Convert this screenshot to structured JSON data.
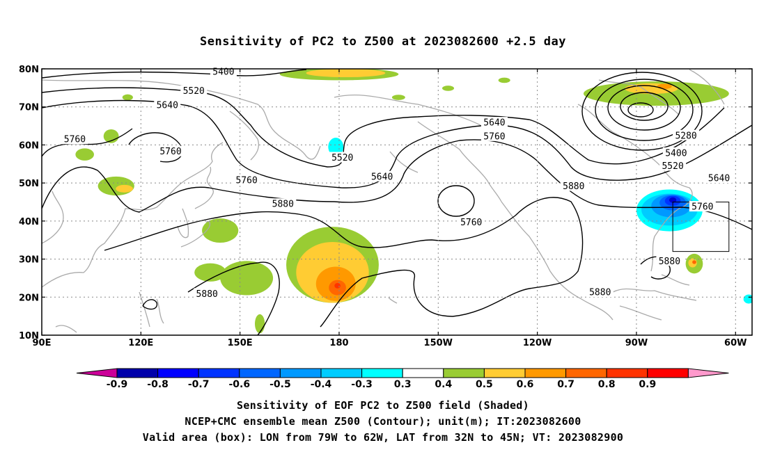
{
  "title": "Sensitivity of PC2 to Z500 at 2023082600 +2.5 day",
  "captions": [
    "Sensitivity of EOF PC2 to Z500 field (Shaded)",
    "NCEP+CMC ensemble mean Z500 (Contour); unit(m); IT:2023082600",
    "Valid area (box): LON from 79W to 62W, LAT from 32N to 45N; VT: 2023082900"
  ],
  "map": {
    "lon_range": [
      90,
      305
    ],
    "lat_range": [
      10,
      80
    ],
    "lat_ticks": [
      {
        "value": 80,
        "label": "80N"
      },
      {
        "value": 70,
        "label": "70N"
      },
      {
        "value": 60,
        "label": "60N"
      },
      {
        "value": 50,
        "label": "50N"
      },
      {
        "value": 40,
        "label": "40N"
      },
      {
        "value": 30,
        "label": "30N"
      },
      {
        "value": 20,
        "label": "20N"
      },
      {
        "value": 10,
        "label": "10N"
      }
    ],
    "lon_ticks": [
      {
        "value": 90,
        "label": "90E"
      },
      {
        "value": 120,
        "label": "120E"
      },
      {
        "value": 150,
        "label": "150E"
      },
      {
        "value": 180,
        "label": "180"
      },
      {
        "value": 210,
        "label": "150W"
      },
      {
        "value": 240,
        "label": "120W"
      },
      {
        "value": 270,
        "label": "90W"
      },
      {
        "value": 300,
        "label": "60W"
      }
    ],
    "valid_box": {
      "lon": [
        281,
        298
      ],
      "lat": [
        32,
        45
      ]
    },
    "contour_labels": [
      {
        "text": "5400",
        "lon": 145,
        "lat": 79.3
      },
      {
        "text": "5520",
        "lon": 136,
        "lat": 74.2
      },
      {
        "text": "5640",
        "lon": 128,
        "lat": 70.5
      },
      {
        "text": "5760",
        "lon": 100,
        "lat": 61.5
      },
      {
        "text": "5760",
        "lon": 129,
        "lat": 58.3
      },
      {
        "text": "5520",
        "lon": 181,
        "lat": 56.7
      },
      {
        "text": "5640",
        "lon": 193,
        "lat": 51.7
      },
      {
        "text": "5760",
        "lon": 152,
        "lat": 50.8
      },
      {
        "text": "5880",
        "lon": 163,
        "lat": 44.5
      },
      {
        "text": "5640",
        "lon": 227,
        "lat": 65.9
      },
      {
        "text": "5760",
        "lon": 227,
        "lat": 62.3
      },
      {
        "text": "5760",
        "lon": 220,
        "lat": 39.7
      },
      {
        "text": "5880",
        "lon": 251,
        "lat": 49.2
      },
      {
        "text": "5280",
        "lon": 285,
        "lat": 62.5
      },
      {
        "text": "5400",
        "lon": 282,
        "lat": 57.9
      },
      {
        "text": "5520",
        "lon": 281,
        "lat": 54.5
      },
      {
        "text": "5640",
        "lon": 295,
        "lat": 51.3
      },
      {
        "text": "5760",
        "lon": 290,
        "lat": 43.8
      },
      {
        "text": "5880",
        "lon": 280,
        "lat": 29.5
      },
      {
        "text": "5880",
        "lon": 259,
        "lat": 21.3
      },
      {
        "text": "5880",
        "lon": 140,
        "lat": 20.9
      }
    ],
    "shading": [
      {
        "level": "0.3-0.4",
        "color": "#99cc33",
        "lon": 103,
        "lat": 57.5,
        "rlon": 2.8,
        "rlat": 1.6
      },
      {
        "level": "0.3-0.4",
        "color": "#99cc33",
        "lon": 111,
        "lat": 62.3,
        "rlon": 2.3,
        "rlat": 1.8
      },
      {
        "level": "0.3-0.4",
        "color": "#99cc33",
        "lon": 116,
        "lat": 72.5,
        "rlon": 1.6,
        "rlat": 0.8
      },
      {
        "level": "0.3-0.4",
        "color": "#99cc33",
        "lon": 112.5,
        "lat": 49.2,
        "rlon": 5.5,
        "rlat": 2.5
      },
      {
        "level": "0.3-0.4",
        "color": "#99cc33",
        "lon": 144,
        "lat": 37.5,
        "rlon": 5.5,
        "rlat": 3.2
      },
      {
        "level": "0.3-0.4",
        "color": "#99cc33",
        "lon": 152,
        "lat": 25,
        "rlon": 8,
        "rlat": 4.5
      },
      {
        "level": "0.3-0.4",
        "color": "#99cc33",
        "lon": 141,
        "lat": 26.5,
        "rlon": 4.8,
        "rlat": 2.4
      },
      {
        "level": "0.3-0.4",
        "color": "#99cc33",
        "lon": 156,
        "lat": 13,
        "rlon": 1.5,
        "rlat": 2.5
      },
      {
        "level": "0.3-0.4",
        "color": "#99cc33",
        "lon": 178,
        "lat": 28.5,
        "rlon": 14,
        "rlat": 10
      },
      {
        "level": "0.3-0.4",
        "color": "#99cc33",
        "lon": 180,
        "lat": 78.6,
        "rlon": 18,
        "rlat": 1.6
      },
      {
        "level": "0.3-0.4",
        "color": "#99cc33",
        "lon": 276,
        "lat": 73.5,
        "rlon": 22,
        "rlat": 3.2
      },
      {
        "level": "0.3-0.4",
        "color": "#99cc33",
        "lon": 198,
        "lat": 72.5,
        "rlon": 2,
        "rlat": 0.7
      },
      {
        "level": "0.3-0.4",
        "color": "#99cc33",
        "lon": 213,
        "lat": 74.9,
        "rlon": 1.8,
        "rlat": 0.7
      },
      {
        "level": "0.3-0.4",
        "color": "#99cc33",
        "lon": 230,
        "lat": 77,
        "rlon": 1.8,
        "rlat": 0.7
      },
      {
        "level": "0.3-0.4",
        "color": "#99cc33",
        "lon": 287.5,
        "lat": 28.8,
        "rlon": 2.6,
        "rlat": 2.6
      },
      {
        "level": "0.4-0.5",
        "color": "#ffcc33",
        "lon": 178,
        "lat": 26.5,
        "rlon": 11,
        "rlat": 8
      },
      {
        "level": "0.4-0.5",
        "color": "#ffcc33",
        "lon": 182,
        "lat": 78.9,
        "rlon": 12,
        "rlat": 1.1
      },
      {
        "level": "0.4-0.5",
        "color": "#ffcc33",
        "lon": 274.5,
        "lat": 74.8,
        "rlon": 8,
        "rlat": 1.4
      },
      {
        "level": "0.4-0.5",
        "color": "#ffcc33",
        "lon": 287,
        "lat": 29,
        "rlon": 1.3,
        "rlat": 1.2
      },
      {
        "level": "0.4-0.5",
        "color": "#ffcc33",
        "lon": 115,
        "lat": 48.5,
        "rlon": 2.6,
        "rlat": 1
      },
      {
        "level": "0.5-0.6",
        "color": "#ff9900",
        "lon": 179,
        "lat": 23.5,
        "rlon": 6,
        "rlat": 4.5
      },
      {
        "level": "0.5-0.6",
        "color": "#ff9900",
        "lon": 278.5,
        "lat": 75.4,
        "rlon": 2.2,
        "rlat": 0.7
      },
      {
        "level": "0.6-0.7",
        "color": "#ff6600",
        "lon": 179.5,
        "lat": 22.5,
        "rlon": 2.6,
        "rlat": 2
      },
      {
        "level": "0.6-0.7",
        "color": "#ff6600",
        "lon": 287.5,
        "lat": 29.2,
        "rlon": 0.6,
        "rlat": 0.5
      },
      {
        "level": "0.7-0.8",
        "color": "#ff3300",
        "lon": 179.5,
        "lat": 23,
        "rlon": 0.9,
        "rlat": 0.7
      },
      {
        "level": "-0.4--0.3",
        "color": "#00ffff",
        "lon": 280,
        "lat": 42.8,
        "rlon": 10,
        "rlat": 5.5
      },
      {
        "level": "-0.4--0.3",
        "color": "#00ffff",
        "lon": 179,
        "lat": 59.5,
        "rlon": 2.3,
        "rlat": 2.4
      },
      {
        "level": "-0.4--0.3",
        "color": "#00ffff",
        "lon": 304,
        "lat": 19.5,
        "rlon": 1.6,
        "rlat": 1.2
      },
      {
        "level": "-0.5--0.4",
        "color": "#00ccff",
        "lon": 280,
        "lat": 43,
        "rlon": 8.5,
        "rlat": 4.2
      },
      {
        "level": "-0.6--0.5",
        "color": "#0099ff",
        "lon": 280.5,
        "lat": 44,
        "rlon": 6,
        "rlat": 3
      },
      {
        "level": "-0.7--0.6",
        "color": "#0066ff",
        "lon": 281,
        "lat": 44.8,
        "rlon": 4,
        "rlat": 2
      },
      {
        "level": "-0.8--0.7",
        "color": "#0033ff",
        "lon": 281,
        "lat": 45.3,
        "rlon": 2.4,
        "rlat": 1.3
      },
      {
        "level": "-0.9--0.8",
        "color": "#0000cc",
        "lon": 281,
        "lat": 45.5,
        "rlon": 1.1,
        "rlat": 0.7
      }
    ]
  },
  "colorbar": {
    "labels": [
      "-0.9",
      "-0.8",
      "-0.7",
      "-0.6",
      "-0.5",
      "-0.4",
      "-0.3",
      "0.3",
      "0.4",
      "0.5",
      "0.6",
      "0.7",
      "0.8",
      "0.9"
    ],
    "colors": [
      "#0000aa",
      "#0000ff",
      "#0033ff",
      "#0066ff",
      "#0099ff",
      "#00ccff",
      "#00ffff",
      "#ffffff",
      "#99cc33",
      "#ffcc33",
      "#ff9900",
      "#ff6600",
      "#ff3300",
      "#ff0000"
    ],
    "low_end_color": "#cc0099",
    "high_end_color": "#ff99cc"
  }
}
